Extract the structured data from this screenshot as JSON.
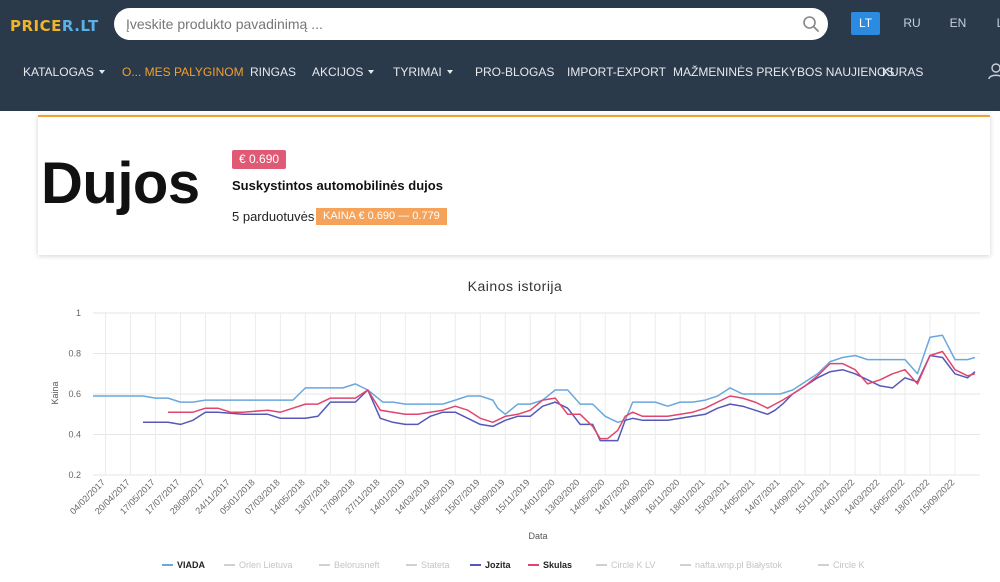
{
  "header": {
    "logo_part1": "PRICE",
    "logo_part2": "R.LT",
    "search_placeholder": "Įveskite produkto pavadinimą ...",
    "languages": {
      "lt": "LT",
      "ru": "RU",
      "en": "EN",
      "partial": "L"
    },
    "nav": [
      {
        "label": "KATALOGAS",
        "dropdown": true,
        "active": false
      },
      {
        "label": "O... MES PALYGINOM",
        "dropdown": false,
        "active": true
      },
      {
        "label": "RINGAS",
        "dropdown": false,
        "active": false
      },
      {
        "label": "AKCIJOS",
        "dropdown": true,
        "active": false
      },
      {
        "label": "TYRIMAI",
        "dropdown": true,
        "active": false
      },
      {
        "label": "PRO-BLOGAS",
        "dropdown": false,
        "active": false
      },
      {
        "label": "IMPORT-EXPORT",
        "dropdown": false,
        "active": false
      },
      {
        "label": "MAŽMENINĖS PREKYBOS NAUJIENOS",
        "dropdown": false,
        "active": false
      },
      {
        "label": "KURAS",
        "dropdown": false,
        "active": false
      }
    ],
    "colors": {
      "background": "#2b3a4b",
      "accent": "#f0a030",
      "lang_active": "#2a8be0"
    }
  },
  "product": {
    "name": "Dujos",
    "price_badge": "€ 0.690",
    "description": "Suskystintos automobilinės dujos",
    "stores": "5 parduotuvės",
    "price_range": "KAINA € 0.690 — 0.779",
    "colors": {
      "price_badge": "#e05a75",
      "range_badge": "#f5a25a"
    }
  },
  "chart_data": {
    "type": "line",
    "title": "Kainos istorija",
    "xlabel": "Data",
    "ylabel": "Kaina",
    "ylim": [
      0.2,
      1
    ],
    "yticks": [
      "1",
      "0.8",
      "0.6",
      "0.4",
      "0.2"
    ],
    "grid": true,
    "legend_position": "bottom",
    "x_tick_labels": [
      "04/02/2017",
      "20/04/2017",
      "17/05/2017",
      "17/07/2017",
      "28/09/2017",
      "24/11/2017",
      "05/01/2018",
      "07/03/2018",
      "14/05/2018",
      "13/07/2018",
      "17/09/2018",
      "27/11/2018",
      "14/01/2019",
      "14/03/2019",
      "14/05/2019",
      "15/07/2019",
      "16/09/2019",
      "15/11/2019",
      "14/01/2020",
      "13/03/2020",
      "14/05/2020",
      "14/07/2020",
      "14/09/2020",
      "16/11/2020",
      "18/01/2021",
      "15/03/2021",
      "14/05/2021",
      "14/07/2021",
      "14/09/2021",
      "15/11/2021",
      "14/01/2022",
      "14/03/2022",
      "16/05/2022",
      "18/07/2022",
      "15/09/2022"
    ],
    "series": [
      {
        "name": "VIADA",
        "color": "#6aa8dc",
        "active": true,
        "points": [
          [
            0,
            0.59
          ],
          [
            0.5,
            0.59
          ],
          [
            1,
            0.59
          ],
          [
            2,
            0.59
          ],
          [
            2.5,
            0.58
          ],
          [
            3,
            0.58
          ],
          [
            3.5,
            0.56
          ],
          [
            4,
            0.56
          ],
          [
            4.5,
            0.57
          ],
          [
            5,
            0.57
          ],
          [
            6,
            0.57
          ],
          [
            7,
            0.57
          ],
          [
            8,
            0.57
          ],
          [
            8.5,
            0.63
          ],
          [
            9,
            0.63
          ],
          [
            9.5,
            0.63
          ],
          [
            10,
            0.63
          ],
          [
            10.5,
            0.65
          ],
          [
            11,
            0.62
          ],
          [
            11.2,
            0.6
          ],
          [
            11.6,
            0.56
          ],
          [
            12,
            0.56
          ],
          [
            12.5,
            0.55
          ],
          [
            13,
            0.55
          ],
          [
            13.5,
            0.55
          ],
          [
            14,
            0.55
          ],
          [
            14.5,
            0.57
          ],
          [
            15,
            0.59
          ],
          [
            15.5,
            0.59
          ],
          [
            16,
            0.57
          ],
          [
            16.2,
            0.53
          ],
          [
            16.5,
            0.5
          ],
          [
            17,
            0.55
          ],
          [
            17.5,
            0.55
          ],
          [
            18,
            0.57
          ],
          [
            18.5,
            0.62
          ],
          [
            19,
            0.62
          ],
          [
            19.5,
            0.55
          ],
          [
            20,
            0.55
          ],
          [
            20.5,
            0.49
          ],
          [
            21,
            0.46
          ],
          [
            21.3,
            0.47
          ],
          [
            21.6,
            0.56
          ],
          [
            22,
            0.56
          ],
          [
            22.5,
            0.56
          ],
          [
            23,
            0.54
          ],
          [
            23.5,
            0.56
          ],
          [
            24,
            0.56
          ],
          [
            24.5,
            0.57
          ],
          [
            25,
            0.59
          ],
          [
            25.5,
            0.63
          ],
          [
            26,
            0.6
          ],
          [
            26.5,
            0.6
          ],
          [
            27,
            0.6
          ],
          [
            27.5,
            0.6
          ],
          [
            28,
            0.62
          ],
          [
            28.5,
            0.66
          ],
          [
            29,
            0.7
          ],
          [
            29.5,
            0.76
          ],
          [
            30,
            0.78
          ],
          [
            30.5,
            0.79
          ],
          [
            31,
            0.77
          ],
          [
            31.5,
            0.77
          ],
          [
            32,
            0.77
          ],
          [
            32.5,
            0.77
          ],
          [
            33,
            0.7
          ],
          [
            33.5,
            0.88
          ],
          [
            34,
            0.89
          ],
          [
            34.5,
            0.77
          ],
          [
            35,
            0.77
          ],
          [
            35.3,
            0.78
          ]
        ]
      },
      {
        "name": "Orlen Lietuva",
        "color": "#d8d8d8",
        "active": false,
        "points": []
      },
      {
        "name": "Belorusneft",
        "color": "#d8d8d8",
        "active": false,
        "points": []
      },
      {
        "name": "Stateta",
        "color": "#d8d8d8",
        "active": false,
        "points": []
      },
      {
        "name": "Jozita",
        "color": "#5558b8",
        "active": true,
        "points": [
          [
            2,
            0.46
          ],
          [
            2.5,
            0.46
          ],
          [
            3,
            0.46
          ],
          [
            3.5,
            0.45
          ],
          [
            4,
            0.47
          ],
          [
            4.5,
            0.51
          ],
          [
            5,
            0.51
          ],
          [
            6,
            0.5
          ],
          [
            7,
            0.5
          ],
          [
            7.5,
            0.48
          ],
          [
            8,
            0.48
          ],
          [
            8.5,
            0.48
          ],
          [
            9,
            0.49
          ],
          [
            9.5,
            0.56
          ],
          [
            10,
            0.56
          ],
          [
            10.5,
            0.56
          ],
          [
            11,
            0.62
          ],
          [
            11.5,
            0.48
          ],
          [
            12,
            0.46
          ],
          [
            12.5,
            0.45
          ],
          [
            13,
            0.45
          ],
          [
            13.5,
            0.49
          ],
          [
            14,
            0.51
          ],
          [
            14.5,
            0.51
          ],
          [
            15,
            0.48
          ],
          [
            15.5,
            0.45
          ],
          [
            16,
            0.44
          ],
          [
            16.5,
            0.47
          ],
          [
            17,
            0.49
          ],
          [
            17.5,
            0.49
          ],
          [
            18,
            0.54
          ],
          [
            18.5,
            0.56
          ],
          [
            19,
            0.53
          ],
          [
            19.5,
            0.45
          ],
          [
            20,
            0.45
          ],
          [
            20.3,
            0.37
          ],
          [
            20.6,
            0.37
          ],
          [
            21,
            0.37
          ],
          [
            21.3,
            0.47
          ],
          [
            21.6,
            0.48
          ],
          [
            22,
            0.47
          ],
          [
            23,
            0.47
          ],
          [
            23.5,
            0.48
          ],
          [
            24,
            0.49
          ],
          [
            24.5,
            0.5
          ],
          [
            25,
            0.53
          ],
          [
            25.5,
            0.55
          ],
          [
            26,
            0.54
          ],
          [
            26.5,
            0.52
          ],
          [
            27,
            0.5
          ],
          [
            27.3,
            0.52
          ],
          [
            27.6,
            0.55
          ],
          [
            28,
            0.6
          ],
          [
            28.5,
            0.64
          ],
          [
            29,
            0.68
          ],
          [
            29.5,
            0.71
          ],
          [
            30,
            0.72
          ],
          [
            30.5,
            0.7
          ],
          [
            31,
            0.67
          ],
          [
            31.5,
            0.64
          ],
          [
            32,
            0.63
          ],
          [
            32.5,
            0.68
          ],
          [
            33,
            0.66
          ],
          [
            33.5,
            0.79
          ],
          [
            34,
            0.78
          ],
          [
            34.5,
            0.7
          ],
          [
            35,
            0.68
          ],
          [
            35.3,
            0.71
          ]
        ]
      },
      {
        "name": "Skulas",
        "color": "#e0456e",
        "active": true,
        "points": [
          [
            3,
            0.51
          ],
          [
            3.5,
            0.51
          ],
          [
            4,
            0.51
          ],
          [
            4.5,
            0.53
          ],
          [
            5,
            0.53
          ],
          [
            5.5,
            0.51
          ],
          [
            6,
            0.51
          ],
          [
            7,
            0.52
          ],
          [
            7.5,
            0.51
          ],
          [
            8,
            0.53
          ],
          [
            8.5,
            0.55
          ],
          [
            9,
            0.55
          ],
          [
            9.5,
            0.58
          ],
          [
            10,
            0.58
          ],
          [
            10.5,
            0.58
          ],
          [
            11,
            0.62
          ],
          [
            11.5,
            0.52
          ],
          [
            12,
            0.51
          ],
          [
            12.5,
            0.5
          ],
          [
            13,
            0.5
          ],
          [
            13.5,
            0.51
          ],
          [
            14,
            0.52
          ],
          [
            14.5,
            0.54
          ],
          [
            15,
            0.52
          ],
          [
            15.5,
            0.48
          ],
          [
            16,
            0.46
          ],
          [
            16.5,
            0.49
          ],
          [
            17,
            0.5
          ],
          [
            17.5,
            0.52
          ],
          [
            18,
            0.57
          ],
          [
            18.5,
            0.58
          ],
          [
            19,
            0.5
          ],
          [
            19.5,
            0.5
          ],
          [
            20,
            0.44
          ],
          [
            20.3,
            0.38
          ],
          [
            20.6,
            0.38
          ],
          [
            21,
            0.42
          ],
          [
            21.3,
            0.49
          ],
          [
            21.6,
            0.51
          ],
          [
            22,
            0.49
          ],
          [
            22.5,
            0.49
          ],
          [
            23,
            0.49
          ],
          [
            23.5,
            0.5
          ],
          [
            24,
            0.51
          ],
          [
            24.5,
            0.53
          ],
          [
            25,
            0.56
          ],
          [
            25.5,
            0.59
          ],
          [
            26,
            0.58
          ],
          [
            26.5,
            0.56
          ],
          [
            27,
            0.53
          ],
          [
            27.3,
            0.55
          ],
          [
            27.6,
            0.57
          ],
          [
            28,
            0.6
          ],
          [
            28.5,
            0.64
          ],
          [
            29,
            0.69
          ],
          [
            29.5,
            0.75
          ],
          [
            30,
            0.75
          ],
          [
            30.5,
            0.72
          ],
          [
            31,
            0.65
          ],
          [
            31.5,
            0.67
          ],
          [
            32,
            0.7
          ],
          [
            32.5,
            0.72
          ],
          [
            33,
            0.65
          ],
          [
            33.5,
            0.79
          ],
          [
            34,
            0.81
          ],
          [
            34.5,
            0.72
          ],
          [
            35,
            0.69
          ],
          [
            35.3,
            0.7
          ]
        ]
      },
      {
        "name": "Circle K LV",
        "color": "#d8d8d8",
        "active": false,
        "points": []
      },
      {
        "name": "nafta.wnp.pl Białystok",
        "color": "#d8d8d8",
        "active": false,
        "points": []
      },
      {
        "name": "Circle K",
        "color": "#d8d8d8",
        "active": false,
        "points": []
      }
    ]
  }
}
